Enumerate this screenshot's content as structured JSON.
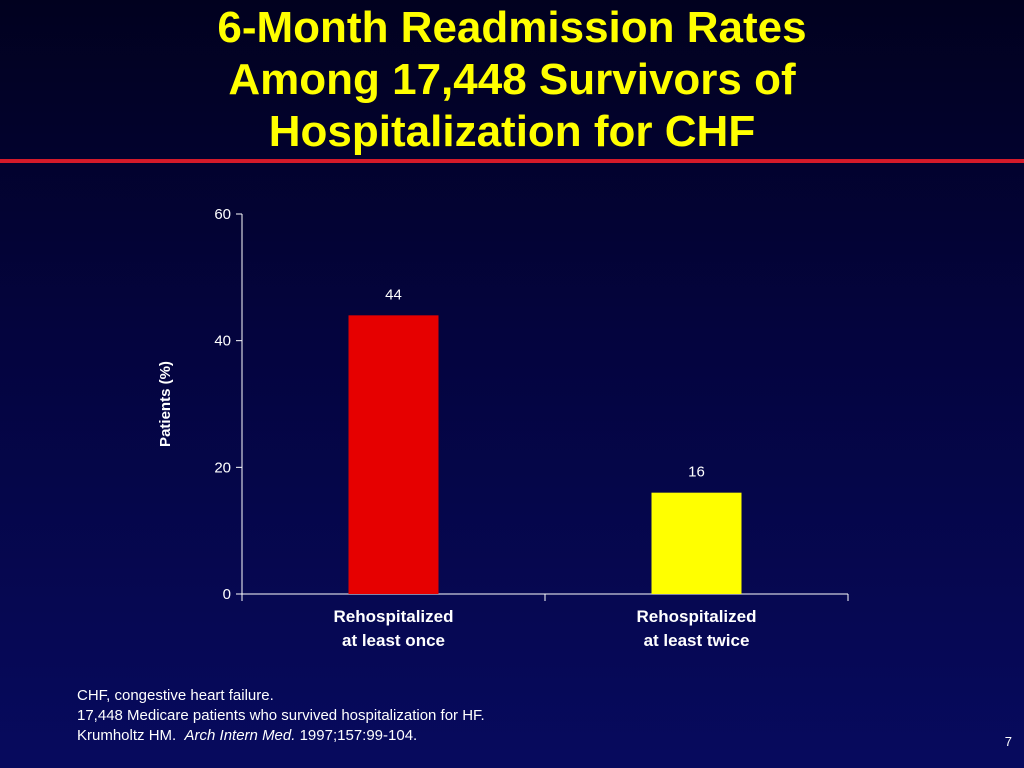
{
  "slide": {
    "title_lines": [
      "6-Month Readmission Rates",
      "Among 17,448 Survivors of",
      "Hospitalization for CHF"
    ],
    "footnotes": {
      "line1": "CHF, congestive heart failure.",
      "line2": "17,448 Medicare patients who survived hospitalization for HF.",
      "line3_author": "Krumholtz HM.",
      "line3_journal": "Arch Intern Med.",
      "line3_citation": "1997;157:99-104."
    },
    "page_number": "7"
  },
  "colors": {
    "title": "#ffff00",
    "rule": "#d41a2a",
    "bar_once": "#e60000",
    "bar_twice": "#ffff00",
    "text": "#ffffff"
  },
  "chart_data": {
    "type": "bar",
    "categories": [
      [
        "Rehospitalized",
        "at least once"
      ],
      [
        "Rehospitalized",
        "at least twice"
      ]
    ],
    "values": [
      44,
      16
    ],
    "data_labels": [
      "44",
      "16"
    ],
    "bar_colors": [
      "#e60000",
      "#ffff00"
    ],
    "ylabel": "Patients (%)",
    "ylim": [
      0,
      60
    ],
    "yticks": [
      0,
      20,
      40,
      60
    ],
    "grid": false,
    "legend": "none"
  }
}
